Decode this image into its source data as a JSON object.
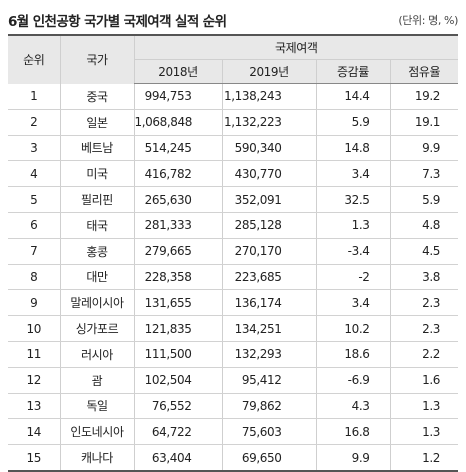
{
  "title": "6월 인천공항 국가별 국제여객 실적 순위",
  "unit": "(단위: 명, %)",
  "headers": {
    "rank": "순위",
    "country": "국가",
    "group": "국제여객",
    "y2018": "2018년",
    "y2019": "2019년",
    "growth": "증감률",
    "share": "점유율"
  },
  "rows": [
    {
      "rank": "1",
      "country": "중국",
      "y2018": "994,753",
      "y2019": "1,138,243",
      "growth": "14.4",
      "share": "19.2"
    },
    {
      "rank": "2",
      "country": "일본",
      "y2018": "1,068,848",
      "y2019": "1,132,223",
      "growth": "5.9",
      "share": "19.1"
    },
    {
      "rank": "3",
      "country": "베트남",
      "y2018": "514,245",
      "y2019": "590,340",
      "growth": "14.8",
      "share": "9.9"
    },
    {
      "rank": "4",
      "country": "미국",
      "y2018": "416,782",
      "y2019": "430,770",
      "growth": "3.4",
      "share": "7.3"
    },
    {
      "rank": "5",
      "country": "필리핀",
      "y2018": "265,630",
      "y2019": "352,091",
      "growth": "32.5",
      "share": "5.9"
    },
    {
      "rank": "6",
      "country": "태국",
      "y2018": "281,333",
      "y2019": "285,128",
      "growth": "1.3",
      "share": "4.8"
    },
    {
      "rank": "7",
      "country": "홍콩",
      "y2018": "279,665",
      "y2019": "270,170",
      "growth": "-3.4",
      "share": "4.5"
    },
    {
      "rank": "8",
      "country": "대만",
      "y2018": "228,358",
      "y2019": "223,685",
      "growth": "-2",
      "share": "3.8"
    },
    {
      "rank": "9",
      "country": "말레이시아",
      "y2018": "131,655",
      "y2019": "136,174",
      "growth": "3.4",
      "share": "2.3"
    },
    {
      "rank": "10",
      "country": "싱가포르",
      "y2018": "121,835",
      "y2019": "134,251",
      "growth": "10.2",
      "share": "2.3"
    },
    {
      "rank": "11",
      "country": "러시아",
      "y2018": "111,500",
      "y2019": "132,293",
      "growth": "18.6",
      "share": "2.2"
    },
    {
      "rank": "12",
      "country": "괌",
      "y2018": "102,504",
      "y2019": "95,412",
      "growth": "-6.9",
      "share": "1.6"
    },
    {
      "rank": "13",
      "country": "독일",
      "y2018": "76,552",
      "y2019": "79,862",
      "growth": "4.3",
      "share": "1.3"
    },
    {
      "rank": "14",
      "country": "인도네시아",
      "y2018": "64,722",
      "y2019": "75,603",
      "growth": "16.8",
      "share": "1.3"
    },
    {
      "rank": "15",
      "country": "캐나다",
      "y2018": "63,404",
      "y2019": "69,650",
      "growth": "9.9",
      "share": "1.2"
    }
  ]
}
